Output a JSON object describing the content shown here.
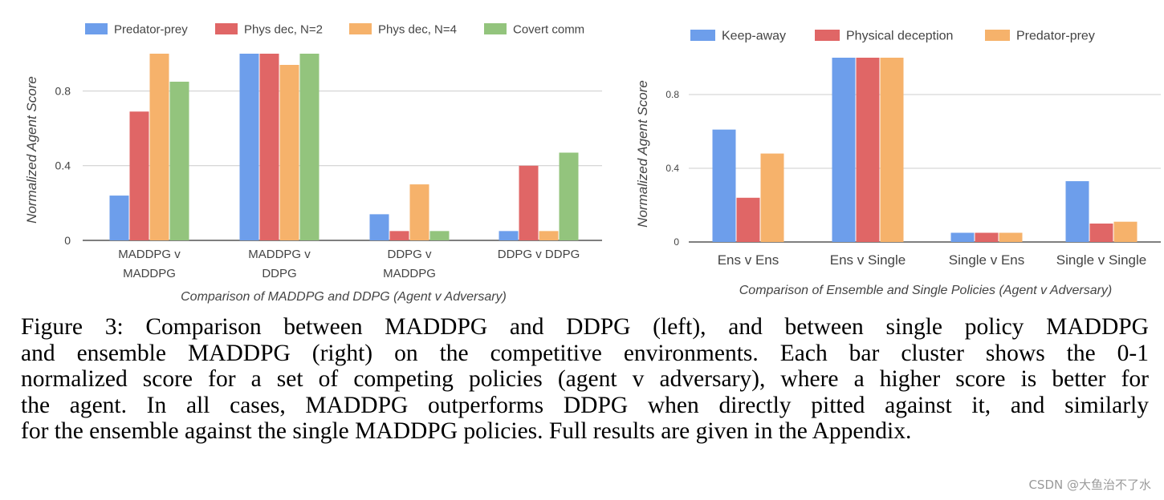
{
  "chart_data": [
    {
      "type": "bar",
      "title": "",
      "xlabel": "Comparison of MADDPG and DDPG (Agent v Adversary)",
      "ylabel": "Normalized Agent Score",
      "ylim": [
        0,
        1.0
      ],
      "yticks": [
        "0",
        "0.4",
        "0.8"
      ],
      "grid": true,
      "legend_position": "top",
      "categories": [
        [
          "MADDPG v",
          "MADDPG"
        ],
        [
          "MADDPG v",
          "DDPG"
        ],
        [
          "DDPG v",
          "MADDPG"
        ],
        [
          "DDPG v DDPG"
        ]
      ],
      "series": [
        {
          "name": "Predator-prey",
          "color": "#6d9eeb",
          "values": [
            0.24,
            1.0,
            0.14,
            0.05
          ]
        },
        {
          "name": "Phys dec, N=2",
          "color": "#e06666",
          "values": [
            0.69,
            1.0,
            0.05,
            0.4
          ]
        },
        {
          "name": "Phys dec, N=4",
          "color": "#f6b26b",
          "values": [
            1.0,
            0.94,
            0.3,
            0.05
          ]
        },
        {
          "name": "Covert comm",
          "color": "#93c47d",
          "values": [
            0.85,
            1.0,
            0.05,
            0.47
          ]
        }
      ]
    },
    {
      "type": "bar",
      "title": "",
      "xlabel": "Comparison of Ensemble and Single Policies (Agent v Adversary)",
      "ylabel": "Normalized Agent Score",
      "ylim": [
        0,
        1.0
      ],
      "yticks": [
        "0",
        "0.4",
        "0.8"
      ],
      "grid": true,
      "legend_position": "top",
      "categories": [
        [
          "Ens v Ens"
        ],
        [
          "Ens v Single"
        ],
        [
          "Single v Ens"
        ],
        [
          "Single v Single"
        ]
      ],
      "series": [
        {
          "name": "Keep-away",
          "color": "#6d9eeb",
          "values": [
            0.61,
            1.0,
            0.05,
            0.33
          ]
        },
        {
          "name": "Physical deception",
          "color": "#e06666",
          "values": [
            0.24,
            1.0,
            0.05,
            0.1
          ]
        },
        {
          "name": "Predator-prey",
          "color": "#f6b26b",
          "values": [
            0.48,
            1.0,
            0.05,
            0.11
          ]
        }
      ]
    }
  ],
  "caption": {
    "lines": [
      "Figure 3: Comparison between MADDPG and DDPG (left), and between single policy MADDPG",
      "and ensemble MADDPG (right) on the competitive environments. Each bar cluster shows the 0-1",
      "normalized score for a set of competing policies (agent v adversary), where a higher score is better for",
      "the agent. In all cases, MADDPG outperforms DDPG when directly pitted against it, and similarly",
      "for the ensemble against the single MADDPG policies. Full results are given in the Appendix."
    ]
  },
  "watermark": "CSDN @大鱼治不了水"
}
